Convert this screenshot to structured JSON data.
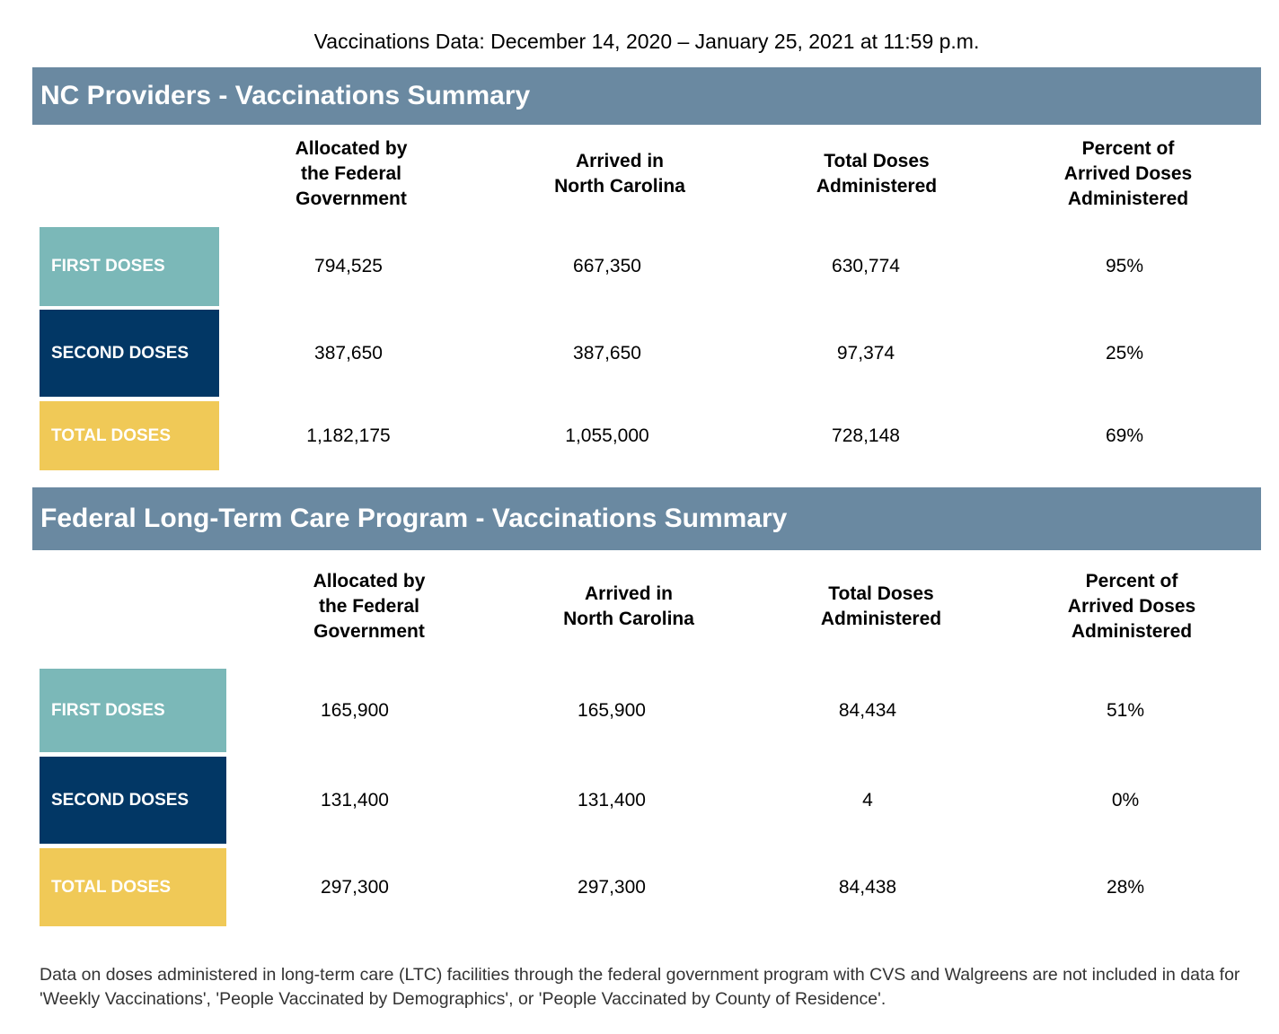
{
  "page_title": "Vaccinations Data: December 14, 2020 – January 25, 2021 at 11:59 p.m.",
  "colors": {
    "header_bg": "#6a89a1",
    "first_doses": "#7bb8b8",
    "second_doses": "#023765",
    "total_doses": "#f0c957"
  },
  "section1": {
    "title": "NC Providers - Vaccinations Summary",
    "columns": {
      "c1": [
        "Allocated by",
        "the Federal",
        "Government"
      ],
      "c2": [
        "Arrived in",
        "North Carolina"
      ],
      "c3": [
        "Total Doses",
        "Administered"
      ],
      "c4": [
        "Percent of",
        "Arrived Doses",
        "Administered"
      ]
    },
    "rows": {
      "first": {
        "label": "FIRST DOSES",
        "allocated": "794,525",
        "arrived": "667,350",
        "administered": "630,774",
        "percent": "95%"
      },
      "second": {
        "label": "SECOND DOSES",
        "allocated": "387,650",
        "arrived": "387,650",
        "administered": "97,374",
        "percent": "25%"
      },
      "total": {
        "label": "TOTAL DOSES",
        "allocated": "1,182,175",
        "arrived": "1,055,000",
        "administered": "728,148",
        "percent": "69%"
      }
    }
  },
  "section2": {
    "title": "Federal Long-Term Care Program - Vaccinations Summary",
    "columns": {
      "c1": [
        "Allocated by",
        "the Federal",
        "Government"
      ],
      "c2": [
        "Arrived in",
        "North Carolina"
      ],
      "c3": [
        "Total Doses",
        "Administered"
      ],
      "c4": [
        "Percent of",
        "Arrived Doses",
        "Administered"
      ]
    },
    "rows": {
      "first": {
        "label": "FIRST DOSES",
        "allocated": "165,900",
        "arrived": "165,900",
        "administered": "84,434",
        "percent": "51%"
      },
      "second": {
        "label": "SECOND DOSES",
        "allocated": "131,400",
        "arrived": "131,400",
        "administered": "4",
        "percent": "0%"
      },
      "total": {
        "label": "TOTAL DOSES",
        "allocated": "297,300",
        "arrived": "297,300",
        "administered": "84,438",
        "percent": "28%"
      }
    }
  },
  "footnote": "Data on doses administered in long-term care (LTC) facilities through the federal government program with CVS and Walgreens are not included in data for 'Weekly Vaccinations', 'People Vaccinated by Demographics', or 'People Vaccinated by County of Residence'."
}
